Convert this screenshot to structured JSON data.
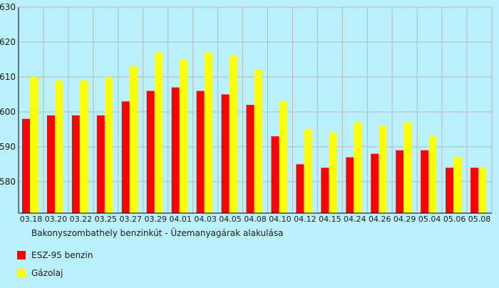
{
  "chart_data": {
    "type": "bar",
    "title": "Bakonyszombathely benzinkút - Üzemanyagárak alakulása",
    "categories": [
      "03.18",
      "03.20",
      "03.22",
      "03.25",
      "03.27",
      "03.29",
      "04.01",
      "04.03",
      "04.05",
      "04.08",
      "04.10",
      "04.12",
      "04.15",
      "04.24",
      "04.26",
      "04.29",
      "05.04",
      "05.06",
      "05.08"
    ],
    "series": [
      {
        "name": "ESZ-95 benzin",
        "color": "#ff0000",
        "values": [
          598,
          599,
          599,
          599,
          603,
          606,
          607,
          606,
          605,
          602,
          593,
          585,
          584,
          587,
          588,
          589,
          589,
          584,
          584
        ]
      },
      {
        "name": "Gázolaj",
        "color": "#ffff00",
        "values": [
          610,
          609,
          609,
          610,
          613,
          617,
          615,
          617,
          616,
          612,
          603,
          595,
          594,
          597,
          596,
          597,
          593,
          587,
          584
        ]
      }
    ],
    "ylim": [
      571,
      630
    ],
    "yticks": [
      580,
      590,
      600,
      610,
      620,
      630
    ],
    "grid": true,
    "legend_position": "bottom-left",
    "xlabel": "",
    "ylabel": ""
  },
  "colors": {
    "background": "#b9f0fc",
    "grid": "#b8b8b8",
    "axis": "#000000"
  }
}
